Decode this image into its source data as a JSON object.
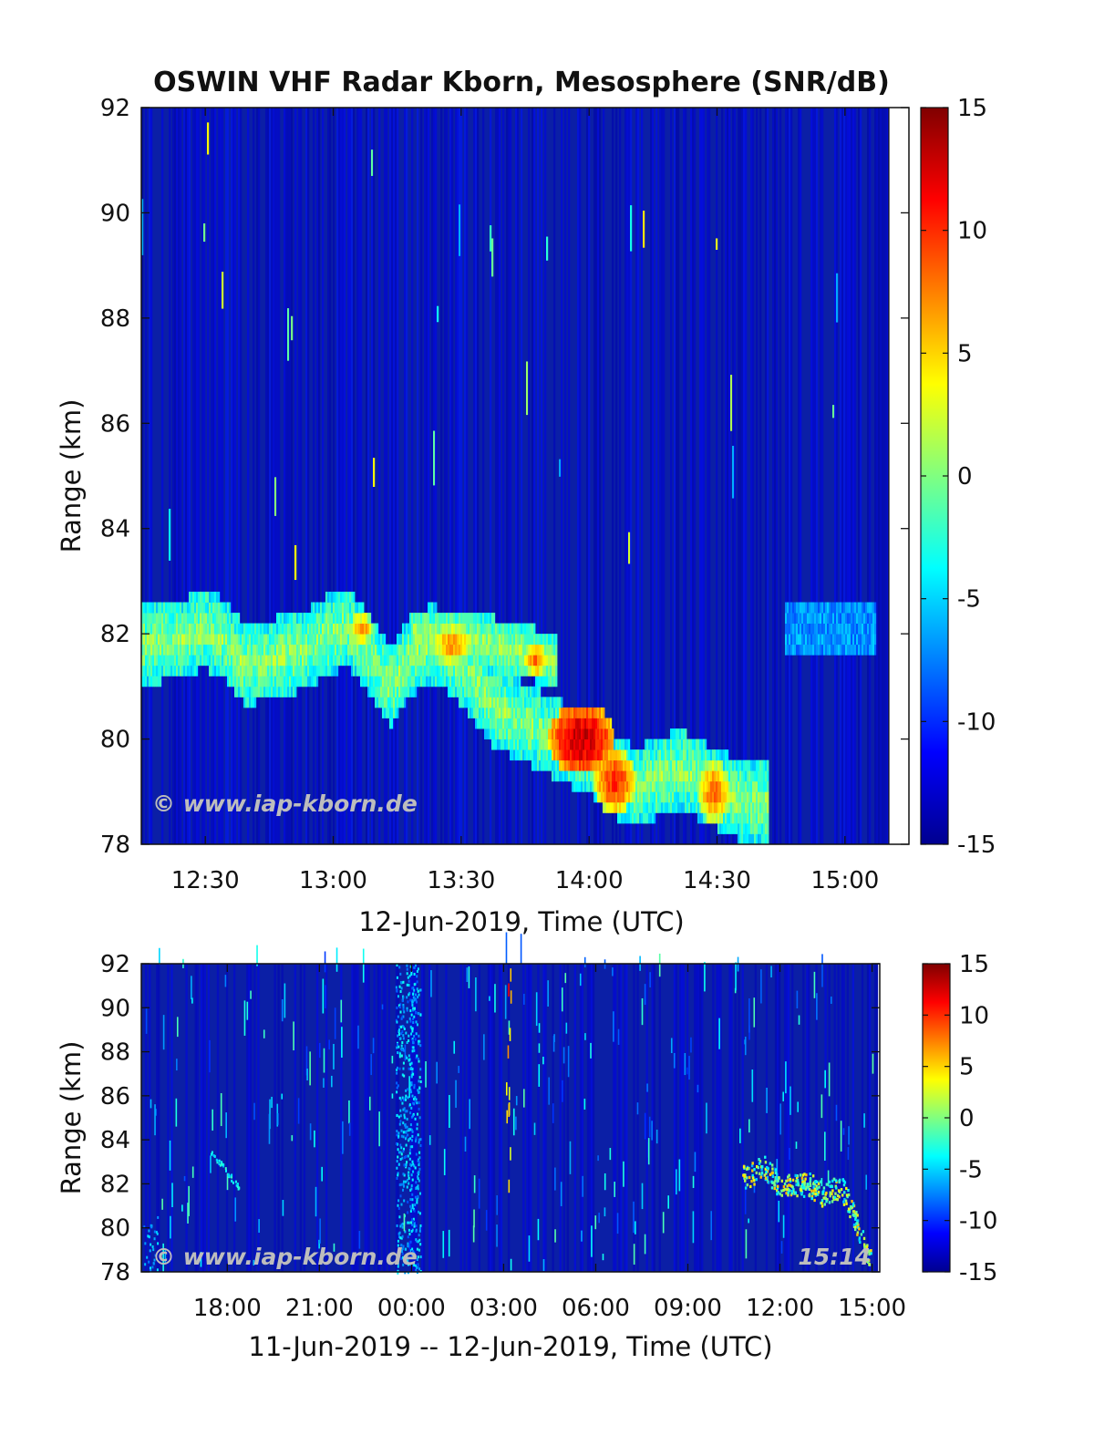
{
  "colors": {
    "background": "#ffffff",
    "axis": "#111111",
    "watermark": "#bdbdbd",
    "field": "#0b1fa6"
  },
  "chart_data": [
    {
      "type": "heatmap",
      "title": "OSWIN VHF Radar Kborn, Mesosphere (SNR/dB)",
      "xlabel": "12-Jun-2019, Time (UTC)",
      "ylabel": "Range (km)",
      "x_unit": "minutes of day (UTC)",
      "xlim": [
        735,
        915
      ],
      "ylim": [
        78,
        92
      ],
      "x_ticks": [
        {
          "value": 750,
          "label": "12:30"
        },
        {
          "value": 780,
          "label": "13:00"
        },
        {
          "value": 810,
          "label": "13:30"
        },
        {
          "value": 840,
          "label": "14:00"
        },
        {
          "value": 870,
          "label": "14:30"
        },
        {
          "value": 900,
          "label": "15:00"
        }
      ],
      "y_ticks": [
        78,
        80,
        82,
        84,
        86,
        88,
        90,
        92
      ],
      "colorbar": {
        "colormap": "jet",
        "range": [
          -15,
          15
        ],
        "ticks": [
          -15,
          -10,
          -5,
          0,
          5,
          10,
          15
        ]
      },
      "watermark": "© www.iap-kborn.de",
      "background_snr": -13,
      "layer_path": [
        [
          735,
          81.8
        ],
        [
          745,
          81.9
        ],
        [
          750,
          82.1
        ],
        [
          755,
          81.9
        ],
        [
          760,
          81.4
        ],
        [
          765,
          81.5
        ],
        [
          770,
          81.6
        ],
        [
          775,
          81.7
        ],
        [
          780,
          82.0
        ],
        [
          785,
          82.1
        ],
        [
          790,
          81.6
        ],
        [
          795,
          81.0
        ],
        [
          800,
          81.6
        ],
        [
          805,
          81.8
        ],
        [
          810,
          81.6
        ],
        [
          815,
          81.1
        ],
        [
          820,
          80.6
        ],
        [
          825,
          80.4
        ],
        [
          830,
          80.2
        ],
        [
          835,
          80.0
        ],
        [
          840,
          79.8
        ],
        [
          845,
          79.6
        ],
        [
          850,
          79.2
        ],
        [
          855,
          79.1
        ],
        [
          860,
          79.3
        ],
        [
          865,
          79.4
        ],
        [
          870,
          79.2
        ],
        [
          875,
          79.0
        ],
        [
          880,
          78.8
        ],
        [
          885,
          78.8
        ]
      ],
      "secondary_path": [
        [
          800,
          82.0
        ],
        [
          810,
          81.9
        ],
        [
          820,
          81.8
        ],
        [
          830,
          81.6
        ],
        [
          835,
          81.4
        ]
      ],
      "layer_end": 886,
      "upper_layer": {
        "x_start": 890,
        "x_end": 912,
        "y": 82.1
      },
      "hotspots": [
        {
          "x": 841,
          "y": 80.0,
          "snr": 13,
          "rx": 8,
          "ry": 0.7
        },
        {
          "x": 849,
          "y": 79.2,
          "snr": 10,
          "rx": 5,
          "ry": 0.6
        },
        {
          "x": 873,
          "y": 79.0,
          "snr": 8,
          "rx": 4,
          "ry": 0.6
        },
        {
          "x": 810,
          "y": 81.8,
          "snr": 7,
          "rx": 5,
          "ry": 0.4
        },
        {
          "x": 788,
          "y": 82.1,
          "snr": 7,
          "rx": 3,
          "ry": 0.3
        },
        {
          "x": 830,
          "y": 81.5,
          "snr": 8,
          "rx": 3,
          "ry": 0.3
        }
      ]
    },
    {
      "type": "heatmap",
      "xlabel": "11-Jun-2019 -- 12-Jun-2019, Time (UTC)",
      "ylabel": "Range (km)",
      "x_unit": "hours since 11-Jun-2019 00:00 UTC",
      "xlim": [
        15.2,
        39.25
      ],
      "ylim": [
        78,
        92
      ],
      "x_ticks": [
        {
          "value": 18,
          "label": "18:00"
        },
        {
          "value": 21,
          "label": "21:00"
        },
        {
          "value": 24,
          "label": "00:00"
        },
        {
          "value": 27,
          "label": "03:00"
        },
        {
          "value": 30,
          "label": "06:00"
        },
        {
          "value": 33,
          "label": "09:00"
        },
        {
          "value": 36,
          "label": "12:00"
        },
        {
          "value": 39,
          "label": "15:00"
        }
      ],
      "y_ticks": [
        78,
        80,
        82,
        84,
        86,
        88,
        90,
        92
      ],
      "colorbar": {
        "colormap": "jet",
        "range": [
          -15,
          15
        ],
        "ticks": [
          -15,
          -10,
          -5,
          0,
          5,
          10,
          15
        ]
      },
      "watermark": "© www.iap-kborn.de",
      "time_stamp": "15:14",
      "background_snr": -13,
      "noise_band": {
        "x_start": 23.5,
        "x_end": 24.3
      },
      "layer_path": [
        [
          34.8,
          82.3
        ],
        [
          35.5,
          82.8
        ],
        [
          36.0,
          82.0
        ],
        [
          36.5,
          81.9
        ],
        [
          37.0,
          82.0
        ],
        [
          37.5,
          81.5
        ],
        [
          38.0,
          82.0
        ],
        [
          38.4,
          80.8
        ],
        [
          38.7,
          79.5
        ],
        [
          39.0,
          78.6
        ]
      ],
      "diag_layer": [
        [
          17.4,
          83.6
        ],
        [
          18.4,
          81.8
        ]
      ]
    }
  ]
}
